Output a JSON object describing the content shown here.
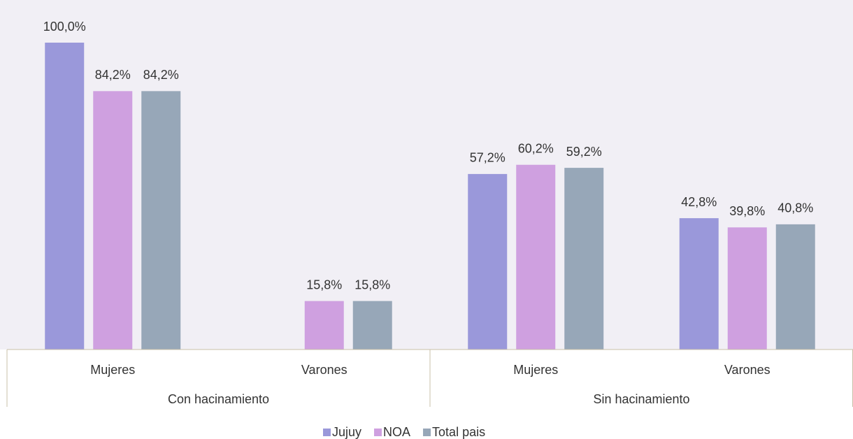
{
  "chart_data": {
    "type": "bar",
    "categories": [
      "Mujeres",
      "Varones",
      "Mujeres",
      "Varones"
    ],
    "category_groups": [
      "Con hacinamiento",
      "Sin hacinamiento"
    ],
    "series": [
      {
        "name": "Jujuy",
        "color": "#9a98da",
        "values": [
          100,
          null,
          57.2,
          42.8
        ],
        "value_labels": [
          "100,0%",
          null,
          "57,2%",
          "42,8%"
        ]
      },
      {
        "name": "NOA",
        "color": "#cfa0e0",
        "values": [
          84.2,
          15.8,
          60.2,
          39.8
        ],
        "value_labels": [
          "84,2%",
          "15,8%",
          "60,2%",
          "39,8%"
        ]
      },
      {
        "name": "Total pais",
        "color": "#97a7b8",
        "values": [
          84.2,
          15.8,
          59.2,
          40.8
        ],
        "value_labels": [
          "84,2%",
          "15,8%",
          "59,2%",
          "40,8%"
        ]
      }
    ],
    "legend": "bottom"
  }
}
